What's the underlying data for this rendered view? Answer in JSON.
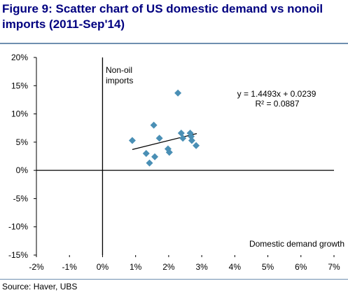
{
  "title_line1": "Figure 9: Scatter chart of US domestic demand vs nonoil",
  "title_line2": "imports (2011-Sep'14)",
  "source": "Source:  Haver, UBS",
  "chart_data": {
    "type": "scatter",
    "title": "Figure 9: Scatter chart of US domestic demand vs nonoil imports (2011-Sep'14)",
    "xlabel": "Domestic demand growth",
    "ylabel": "Non-oil imports",
    "xlim": [
      -0.02,
      0.07
    ],
    "ylim": [
      -0.15,
      0.2
    ],
    "x_ticks": [
      -0.02,
      -0.01,
      0,
      0.01,
      0.02,
      0.03,
      0.04,
      0.05,
      0.06,
      0.07
    ],
    "x_tick_labels": [
      "-2%",
      "-1%",
      "0%",
      "1%",
      "2%",
      "3%",
      "4%",
      "5%",
      "6%",
      "7%"
    ],
    "y_ticks": [
      0.2,
      0.15,
      0.1,
      0.05,
      0,
      -0.05,
      -0.1,
      -0.15
    ],
    "y_tick_labels": [
      "20%",
      "15%",
      "10%",
      "5%",
      "0%",
      "-5%",
      "-10%",
      "-15%"
    ],
    "grid": false,
    "marker_color": "#4a8fb5",
    "points": [
      {
        "x": 0.009,
        "y": 0.053
      },
      {
        "x": 0.0132,
        "y": 0.03
      },
      {
        "x": 0.0142,
        "y": 0.013
      },
      {
        "x": 0.0155,
        "y": 0.08
      },
      {
        "x": 0.0158,
        "y": 0.024
      },
      {
        "x": 0.0172,
        "y": 0.057
      },
      {
        "x": 0.0198,
        "y": 0.038
      },
      {
        "x": 0.0202,
        "y": 0.032
      },
      {
        "x": 0.0228,
        "y": 0.137
      },
      {
        "x": 0.0238,
        "y": 0.066
      },
      {
        "x": 0.0243,
        "y": 0.057
      },
      {
        "x": 0.0265,
        "y": 0.066
      },
      {
        "x": 0.0268,
        "y": 0.06
      },
      {
        "x": 0.027,
        "y": 0.053
      },
      {
        "x": 0.0283,
        "y": 0.044
      }
    ],
    "trendline": {
      "slope": 1.4493,
      "intercept": 0.0239,
      "x_range": [
        0.009,
        0.0285
      ],
      "equation": "y = 1.4493x + 0.0239",
      "r_squared": "R² = 0.0887"
    }
  }
}
